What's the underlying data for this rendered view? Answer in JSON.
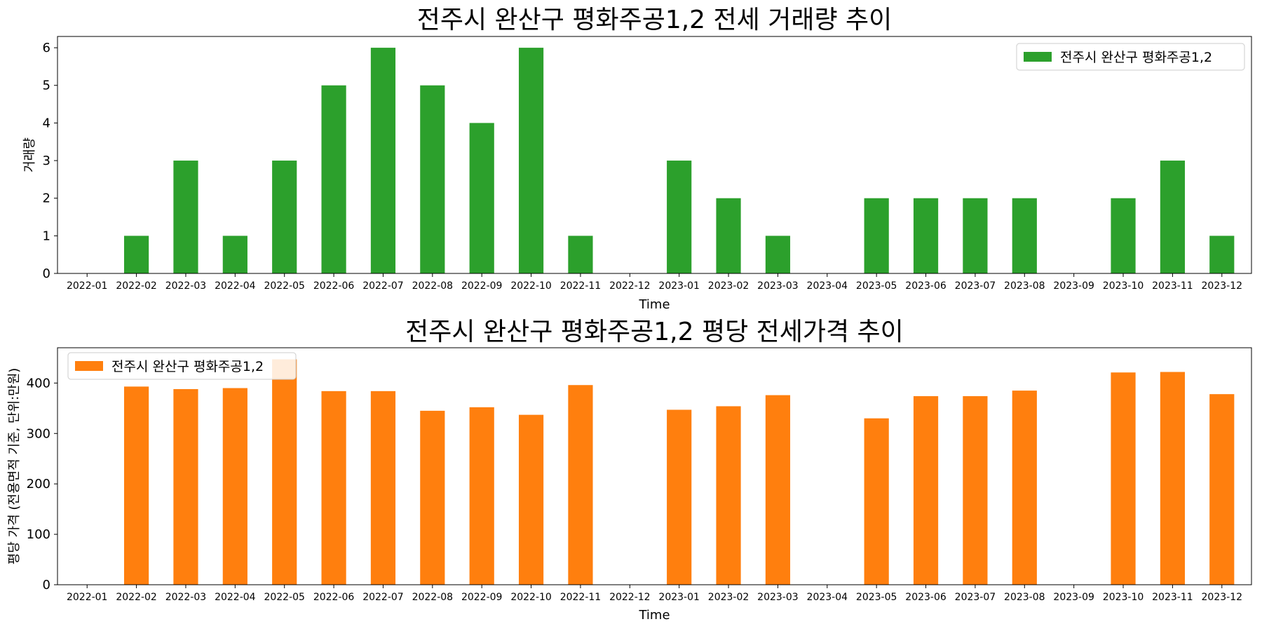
{
  "chart_data": [
    {
      "type": "bar",
      "title": "전주시 완산구 평화주공1,2 전세 거래량 추이",
      "xlabel": "Time",
      "ylabel": "거래량",
      "ylim": [
        0,
        6.3
      ],
      "yticks": [
        0,
        1,
        2,
        3,
        4,
        5,
        6
      ],
      "grid": false,
      "legend_position": "top-right",
      "categories": [
        "2022-01",
        "2022-02",
        "2022-03",
        "2022-04",
        "2022-05",
        "2022-06",
        "2022-07",
        "2022-08",
        "2022-09",
        "2022-10",
        "2022-11",
        "2022-12",
        "2023-01",
        "2023-02",
        "2023-03",
        "2023-04",
        "2023-05",
        "2023-06",
        "2023-07",
        "2023-08",
        "2023-09",
        "2023-10",
        "2023-11",
        "2023-12"
      ],
      "series": [
        {
          "name": "전주시 완산구 평화주공1,2",
          "color": "#2ca02c",
          "values": [
            0,
            1,
            3,
            1,
            3,
            5,
            6,
            5,
            4,
            6,
            1,
            0,
            3,
            2,
            1,
            0,
            2,
            2,
            2,
            2,
            0,
            2,
            3,
            1
          ]
        }
      ]
    },
    {
      "type": "bar",
      "title": "전주시 완산구 평화주공1,2 평당 전세가격 추이",
      "xlabel": "Time",
      "ylabel": "평당 가격 (전용면적 기준, 단위:만원)",
      "ylim": [
        0,
        470
      ],
      "yticks": [
        0,
        100,
        200,
        300,
        400
      ],
      "grid": false,
      "legend_position": "top-left",
      "categories": [
        "2022-01",
        "2022-02",
        "2022-03",
        "2022-04",
        "2022-05",
        "2022-06",
        "2022-07",
        "2022-08",
        "2022-09",
        "2022-10",
        "2022-11",
        "2022-12",
        "2023-01",
        "2023-02",
        "2023-03",
        "2023-04",
        "2023-05",
        "2023-06",
        "2023-07",
        "2023-08",
        "2023-09",
        "2023-10",
        "2023-11",
        "2023-12"
      ],
      "series": [
        {
          "name": "전주시 완산구 평화주공1,2",
          "color": "#ff7f0e",
          "values": [
            0,
            393,
            388,
            390,
            447,
            384,
            384,
            345,
            352,
            337,
            396,
            0,
            347,
            354,
            376,
            0,
            330,
            374,
            374,
            385,
            0,
            421,
            422,
            378
          ]
        }
      ]
    }
  ]
}
